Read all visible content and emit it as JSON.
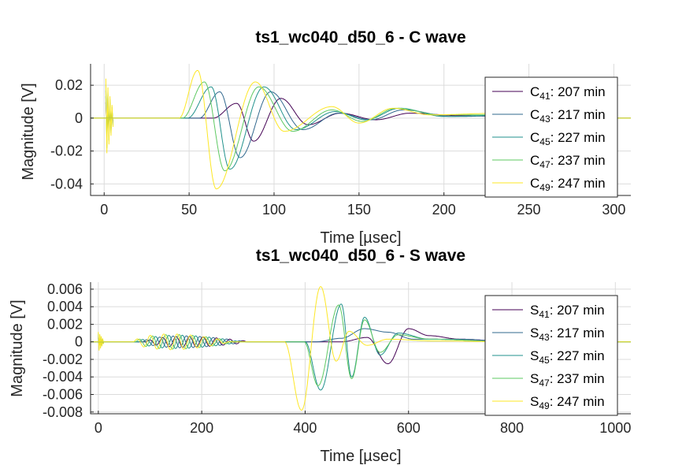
{
  "chart_data": [
    {
      "type": "line",
      "title": "ts1_wc040_d50_6 - C wave",
      "xlabel": "Time [µsec]",
      "ylabel": "Magnitude [V]",
      "xlim": [
        -8,
        310
      ],
      "ylim": [
        -0.047,
        0.033
      ],
      "xticks": [
        0,
        50,
        100,
        150,
        200,
        250,
        300
      ],
      "yticks": [
        -0.04,
        -0.02,
        0,
        0.02
      ],
      "ytick_labels": [
        "-0.04",
        "-0.02",
        "0",
        "0.02"
      ],
      "grid": true,
      "legend_position": "right",
      "series": [
        {
          "letter": "C",
          "sub": "41",
          "label_rest": ": 207 min",
          "color": "#440154",
          "onset": 64,
          "peaks": [
            [
              78,
              0.009
            ],
            [
              88,
              -0.014
            ],
            [
              104,
              0.012
            ],
            [
              120,
              -0.004
            ],
            [
              139,
              0.003
            ],
            [
              160,
              -0.001
            ],
            [
              180,
              0.003
            ],
            [
              210,
              0.0015
            ],
            [
              240,
              0.001
            ],
            [
              300,
              0.0
            ]
          ]
        },
        {
          "letter": "C",
          "sub": "43",
          "label_rest": ": 217 min",
          "color": "#31688e",
          "onset": 56,
          "peaks": [
            [
              68,
              0.016
            ],
            [
              80,
              -0.024
            ],
            [
              98,
              0.016
            ],
            [
              117,
              -0.007
            ],
            [
              138,
              0.003
            ],
            [
              157,
              -0.001
            ],
            [
              176,
              0.005
            ],
            [
              205,
              0.001
            ],
            [
              240,
              0.0015
            ],
            [
              300,
              0.0
            ]
          ]
        },
        {
          "letter": "C",
          "sub": "45",
          "label_rest": ": 227 min",
          "color": "#21918c",
          "onset": 49,
          "peaks": [
            [
              63,
              0.019
            ],
            [
              74,
              -0.031
            ],
            [
              94,
              0.019
            ],
            [
              113,
              -0.007
            ],
            [
              136,
              0.004
            ],
            [
              154,
              -0.001
            ],
            [
              174,
              0.006
            ],
            [
              200,
              0.001
            ],
            [
              240,
              0.002
            ],
            [
              300,
              0.0
            ]
          ]
        },
        {
          "letter": "C",
          "sub": "47",
          "label_rest": ": 237 min",
          "color": "#5ec962",
          "onset": 46,
          "peaks": [
            [
              59,
              0.022
            ],
            [
              71,
              -0.032
            ],
            [
              91,
              0.019
            ],
            [
              111,
              -0.008
            ],
            [
              134,
              0.005
            ],
            [
              152,
              -0.002
            ],
            [
              172,
              0.006
            ],
            [
              198,
              0.002
            ],
            [
              238,
              0.002
            ],
            [
              300,
              0.0
            ]
          ]
        },
        {
          "letter": "C",
          "sub": "49",
          "label_rest": ": 247 min",
          "color": "#fde725",
          "onset": 44,
          "peaks": [
            [
              55,
              0.029
            ],
            [
              66,
              -0.043
            ],
            [
              89,
              0.022
            ],
            [
              106,
              -0.008
            ],
            [
              134,
              0.007
            ],
            [
              150,
              -0.003
            ],
            [
              170,
              0.006
            ],
            [
              192,
              0.002
            ],
            [
              235,
              0.003
            ],
            [
              300,
              0.0
            ]
          ]
        }
      ]
    },
    {
      "type": "line",
      "title": "ts1_wc040_d50_6 - S wave",
      "xlabel": "Time [µsec]",
      "ylabel": "Magnitude [V]",
      "xlim": [
        -15,
        1030
      ],
      "ylim": [
        -0.0082,
        0.0068
      ],
      "xticks": [
        0,
        200,
        400,
        600,
        800,
        1000
      ],
      "yticks": [
        -0.008,
        -0.006,
        -0.004,
        -0.002,
        0,
        0.002,
        0.004,
        0.006
      ],
      "ytick_labels": [
        "-0.008",
        "-0.006",
        "-0.004",
        "-0.002",
        "0",
        "0.002",
        "0.004",
        "0.006"
      ],
      "grid": true,
      "legend_position": "right",
      "series": [
        {
          "letter": "S",
          "sub": "41",
          "label_rest": ": 207 min",
          "color": "#440154",
          "onset": 470,
          "peaks": [
            [
              520,
              0.0005
            ],
            [
              560,
              -0.0025
            ],
            [
              600,
              0.0015
            ],
            [
              640,
              0.0007
            ],
            [
              700,
              0.0003
            ],
            [
              800,
              0.0
            ]
          ],
          "early_onset": 92,
          "early_end": 310,
          "early_amp": 0.0008
        },
        {
          "letter": "S",
          "sub": "43",
          "label_rest": ": 217 min",
          "color": "#31688e",
          "onset": 420,
          "peaks": [
            [
              470,
              0.0004
            ],
            [
              515,
              0.0015
            ],
            [
              560,
              0.0011
            ],
            [
              610,
              0.0003
            ],
            [
              700,
              0.0003
            ],
            [
              800,
              0.0
            ]
          ],
          "early_onset": 86,
          "early_end": 300,
          "early_amp": 0.0009
        },
        {
          "letter": "S",
          "sub": "45",
          "label_rest": ": 227 min",
          "color": "#21918c",
          "onset": 400,
          "peaks": [
            [
              430,
              -0.0055
            ],
            [
              470,
              0.0043
            ],
            [
              490,
              -0.004
            ],
            [
              515,
              0.0028
            ],
            [
              545,
              -0.0015
            ],
            [
              580,
              0.001
            ],
            [
              640,
              0.0003
            ],
            [
              800,
              0.0
            ]
          ],
          "early_onset": 78,
          "early_end": 290,
          "early_amp": 0.001
        },
        {
          "letter": "S",
          "sub": "47",
          "label_rest": ": 237 min",
          "color": "#5ec962",
          "onset": 398,
          "peaks": [
            [
              425,
              -0.005
            ],
            [
              465,
              0.0042
            ],
            [
              490,
              -0.0042
            ],
            [
              515,
              0.0025
            ],
            [
              545,
              -0.0012
            ],
            [
              580,
              0.0008
            ],
            [
              640,
              0.0003
            ],
            [
              800,
              0.0
            ]
          ],
          "early_onset": 72,
          "early_end": 280,
          "early_amp": 0.0011
        },
        {
          "letter": "S",
          "sub": "49",
          "label_rest": ": 247 min",
          "color": "#fde725",
          "onset": 360,
          "peaks": [
            [
              393,
              -0.0078
            ],
            [
              430,
              0.0063
            ],
            [
              460,
              -0.0022
            ],
            [
              485,
              0.0012
            ],
            [
              520,
              -0.0004
            ],
            [
              560,
              0.0003
            ],
            [
              650,
              0.0001
            ],
            [
              800,
              0.0
            ]
          ],
          "early_onset": 68,
          "early_end": 270,
          "early_amp": 0.0012
        }
      ]
    }
  ]
}
